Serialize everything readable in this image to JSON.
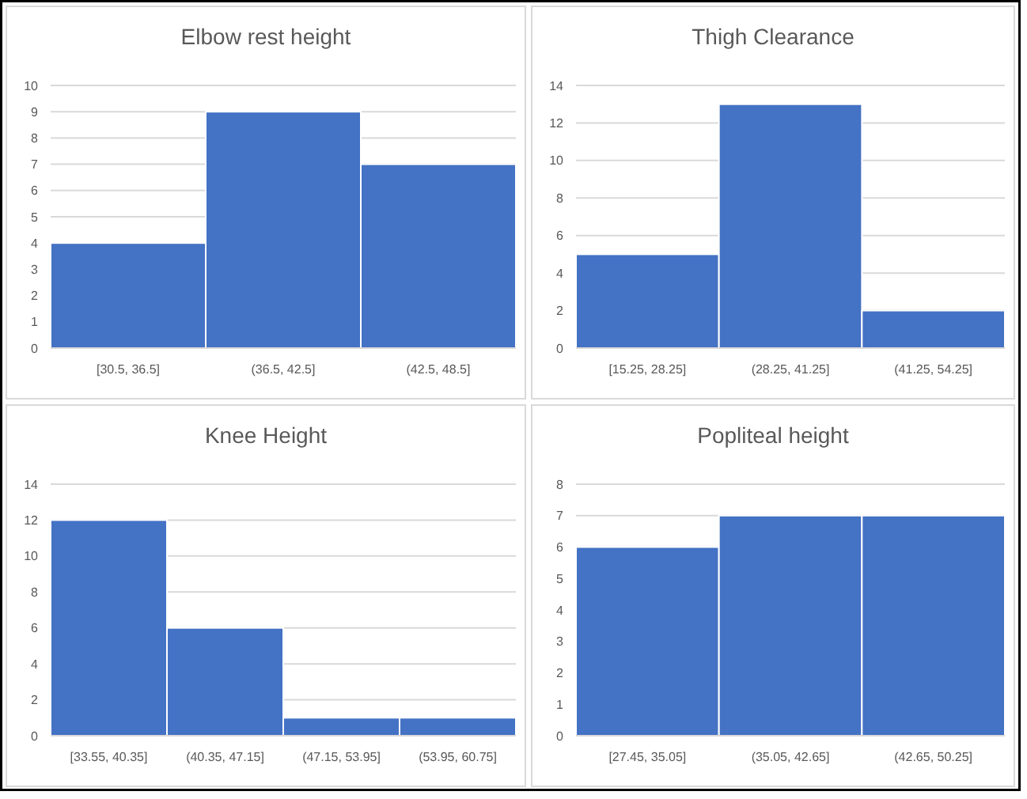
{
  "chart_data": [
    {
      "type": "bar",
      "title": "Elbow rest height",
      "categories": [
        "[30.5, 36.5]",
        "(36.5, 42.5]",
        "(42.5, 48.5]"
      ],
      "values": [
        4,
        9,
        7
      ],
      "color": "#4472c4",
      "ylim": [
        0,
        10
      ],
      "yticks": [
        0,
        1,
        2,
        3,
        4,
        5,
        6,
        7,
        8,
        9,
        10
      ],
      "grid": "y"
    },
    {
      "type": "bar",
      "title": "Thigh Clearance",
      "categories": [
        "[15.25, 28.25]",
        "(28.25, 41.25]",
        "(41.25, 54.25]"
      ],
      "values": [
        5,
        13,
        2
      ],
      "color": "#4472c4",
      "ylim": [
        0,
        14
      ],
      "yticks": [
        0,
        2,
        4,
        6,
        8,
        10,
        12,
        14
      ],
      "grid": "y"
    },
    {
      "type": "bar",
      "title": "Knee Height",
      "categories": [
        "[33.55, 40.35]",
        "(40.35, 47.15]",
        "(47.15, 53.95]",
        "(53.95, 60.75]"
      ],
      "values": [
        12,
        6,
        1,
        1
      ],
      "color": "#4472c4",
      "ylim": [
        0,
        14
      ],
      "yticks": [
        0,
        2,
        4,
        6,
        8,
        10,
        12,
        14
      ],
      "grid": "y"
    },
    {
      "type": "bar",
      "title": "Popliteal height",
      "categories": [
        "[27.45, 35.05]",
        "(35.05, 42.65]",
        "(42.65, 50.25]"
      ],
      "values": [
        6,
        7,
        7
      ],
      "color": "#4472c4",
      "ylim": [
        0,
        8
      ],
      "yticks": [
        0,
        1,
        2,
        3,
        4,
        5,
        6,
        7,
        8
      ],
      "grid": "y"
    }
  ]
}
